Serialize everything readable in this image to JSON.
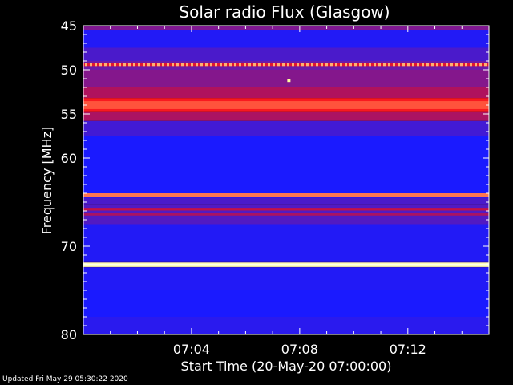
{
  "chart_data": {
    "type": "heatmap",
    "title": "Solar radio Flux (Glasgow)",
    "xlabel": "Start Time (20-May-20 07:00:00)",
    "ylabel": "Frequency [MHz]",
    "x_unit": "minutes after 07:00",
    "xlim": [
      0,
      15
    ],
    "ylim": [
      45,
      80
    ],
    "y_inverted": true,
    "y_ticks": [
      {
        "value": 45,
        "label": "45"
      },
      {
        "value": 50,
        "label": "50"
      },
      {
        "value": 55,
        "label": "55"
      },
      {
        "value": 60,
        "label": "60"
      },
      {
        "value": 70,
        "label": "70"
      },
      {
        "value": 80,
        "label": "80"
      }
    ],
    "x_ticks": [
      {
        "value": 4,
        "label": "07:04"
      },
      {
        "value": 8,
        "label": "07:08"
      },
      {
        "value": 12,
        "label": "07:12"
      }
    ],
    "colormap": [
      "#000080",
      "#1a1aff",
      "#6a1aa8",
      "#c0104a",
      "#ff1a1a",
      "#ffffa0"
    ],
    "frequency_bands": [
      {
        "from": 45,
        "to": 45.5,
        "level": 0.45
      },
      {
        "from": 45.5,
        "to": 47.5,
        "level": 0.22
      },
      {
        "from": 47.5,
        "to": 49.0,
        "level": 0.32
      },
      {
        "from": 49.0,
        "to": 50.0,
        "level": 0.4
      },
      {
        "from": 50.0,
        "to": 52.0,
        "level": 0.46
      },
      {
        "from": 52.0,
        "to": 53.2,
        "level": 0.56
      },
      {
        "from": 53.2,
        "to": 54.8,
        "level": 0.78
      },
      {
        "from": 54.8,
        "to": 55.8,
        "level": 0.55
      },
      {
        "from": 55.8,
        "to": 57.5,
        "level": 0.3
      },
      {
        "from": 57.5,
        "to": 64.5,
        "level": 0.2
      },
      {
        "from": 64.5,
        "to": 65.2,
        "level": 0.32
      },
      {
        "from": 65.2,
        "to": 67.5,
        "level": 0.34
      },
      {
        "from": 67.5,
        "to": 71.8,
        "level": 0.22
      },
      {
        "from": 71.8,
        "to": 72.4,
        "level": 0.32
      },
      {
        "from": 72.4,
        "to": 75.0,
        "level": 0.22
      },
      {
        "from": 75.0,
        "to": 78.0,
        "level": 0.2
      },
      {
        "from": 78.0,
        "to": 80.0,
        "level": 0.24
      }
    ],
    "emission_lines": [
      {
        "freq": 49.4,
        "level": 0.93,
        "width": 0.35,
        "dotted": true
      },
      {
        "freq": 54.0,
        "level": 0.85,
        "width": 0.9
      },
      {
        "freq": 64.2,
        "level": 0.88,
        "width": 0.4
      },
      {
        "freq": 65.8,
        "level": 0.62,
        "width": 0.3
      },
      {
        "freq": 66.4,
        "level": 0.55,
        "width": 0.25
      },
      {
        "freq": 72.1,
        "level": 1.0,
        "width": 0.5
      }
    ],
    "point_sources": [
      {
        "time": 7.6,
        "freq": 51.2,
        "level": 1.0
      }
    ]
  },
  "footer": {
    "updated": "Updated Fri May 29 05:30:22 2020"
  }
}
